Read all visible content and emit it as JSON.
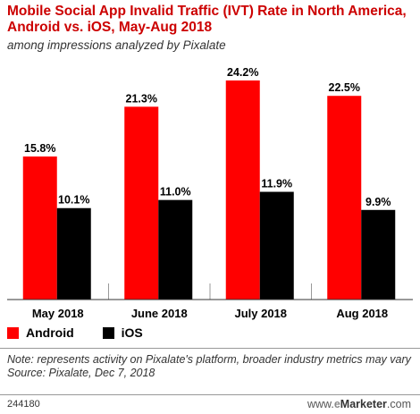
{
  "header": {
    "title": "Mobile Social App Invalid Traffic (IVT) Rate in North America, Android vs. iOS, May-Aug 2018",
    "subtitle": "among impressions analyzed by Pixalate"
  },
  "colors": {
    "android": "#ff0000",
    "ios": "#000000",
    "title": "#cc0000"
  },
  "chart_data": {
    "type": "bar",
    "categories": [
      "May 2018",
      "June 2018",
      "July 2018",
      "Aug 2018"
    ],
    "series": [
      {
        "name": "Android",
        "values": [
          15.8,
          21.3,
          24.2,
          22.5
        ]
      },
      {
        "name": "iOS",
        "values": [
          10.1,
          11.0,
          11.9,
          9.9
        ]
      }
    ],
    "ylim": [
      0,
      24.2
    ],
    "grid": false,
    "legend_position": "bottom-left",
    "title": "Mobile Social App Invalid Traffic (IVT) Rate in North America, Android vs. iOS, May-Aug 2018",
    "subtitle": "among impressions analyzed by Pixalate"
  },
  "legend": {
    "android_label": "Android",
    "ios_label": "iOS"
  },
  "footer": {
    "note": "Note: represents activity on Pixalate's platform, broader industry metrics may vary",
    "source": "Source: Pixalate, Dec 7, 2018",
    "id": "244180",
    "brand_www": "www.",
    "brand_e": "e",
    "brand_name": "Marketer",
    "brand_tld": ".com"
  }
}
